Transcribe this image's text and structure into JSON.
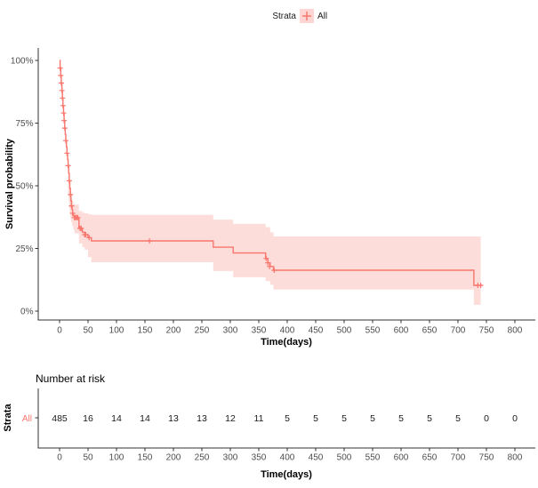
{
  "figure": {
    "background": "#ffffff",
    "accent_color": "#F8766D",
    "axis_text_color": "#4d4d4d"
  },
  "chart_data": [
    {
      "type": "line",
      "subtype": "kaplan-meier-step-curve-with-ci",
      "title": "",
      "xlabel": "Time(days)",
      "ylabel": "Survival probability",
      "xlim": [
        0,
        800
      ],
      "ylim": [
        0,
        100
      ],
      "grid": false,
      "legend": {
        "position": "top",
        "title": "Strata",
        "entries": [
          {
            "label": "All",
            "color": "#F8766D",
            "symbol": "+"
          }
        ]
      },
      "x_ticks": [
        0,
        50,
        100,
        150,
        200,
        250,
        300,
        350,
        400,
        450,
        500,
        550,
        600,
        650,
        700,
        750,
        800
      ],
      "y_ticks": [
        {
          "label": "0%",
          "value": 0
        },
        {
          "label": "25%",
          "value": 25
        },
        {
          "label": "50%",
          "value": 50
        },
        {
          "label": "75%",
          "value": 75
        },
        {
          "label": "100%",
          "value": 100
        }
      ],
      "series": [
        {
          "name": "All",
          "color": "#F8766D",
          "ci_fill_opacity": 0.25,
          "end_day": 742,
          "steps": [
            [
              0,
              100
            ],
            [
              1,
              97
            ],
            [
              2,
              94
            ],
            [
              3,
              91
            ],
            [
              4,
              88
            ],
            [
              5,
              85
            ],
            [
              6,
              82
            ],
            [
              7,
              79
            ],
            [
              8,
              76
            ],
            [
              9,
              73
            ],
            [
              10,
              70.5
            ],
            [
              11,
              68
            ],
            [
              12,
              65.5
            ],
            [
              13,
              63
            ],
            [
              14,
              60.5
            ],
            [
              15,
              58
            ],
            [
              16,
              55
            ],
            [
              17,
              52
            ],
            [
              18,
              49
            ],
            [
              19,
              46.5
            ],
            [
              20,
              44
            ],
            [
              21,
              42
            ],
            [
              22,
              40.5
            ],
            [
              23,
              39
            ],
            [
              24,
              38
            ],
            [
              26,
              37.3
            ],
            [
              34,
              33
            ],
            [
              40,
              31.5
            ],
            [
              44,
              30.5
            ],
            [
              50,
              29.3
            ],
            [
              56,
              28
            ],
            [
              270,
              25.5
            ],
            [
              305,
              23.2
            ],
            [
              362,
              21
            ],
            [
              366,
              19.3
            ],
            [
              370,
              17.8
            ],
            [
              376,
              16.3
            ],
            [
              728,
              10.3
            ]
          ],
          "censor_marks": [
            [
              1,
              97
            ],
            [
              2,
              94
            ],
            [
              3,
              91
            ],
            [
              4,
              88
            ],
            [
              5,
              85
            ],
            [
              6,
              82
            ],
            [
              7,
              79
            ],
            [
              8,
              76
            ],
            [
              9,
              73
            ],
            [
              11,
              68
            ],
            [
              13,
              63
            ],
            [
              15,
              58
            ],
            [
              17,
              52
            ],
            [
              19,
              46.5
            ],
            [
              21,
              42
            ],
            [
              23,
              39
            ],
            [
              26,
              37.3
            ],
            [
              28,
              37.3
            ],
            [
              30,
              37.3
            ],
            [
              32,
              37.3
            ],
            [
              36,
              33
            ],
            [
              38,
              33
            ],
            [
              44,
              30.5
            ],
            [
              46,
              30.5
            ],
            [
              52,
              29.3
            ],
            [
              158,
              28
            ],
            [
              363,
              21
            ],
            [
              366,
              19.3
            ],
            [
              369,
              17.8
            ],
            [
              377,
              16.3
            ],
            [
              735,
              10.3
            ],
            [
              740,
              10.3
            ]
          ],
          "ci_band_end_day": 740,
          "ci_upper": [
            [
              15,
              54
            ],
            [
              16,
              51
            ],
            [
              17,
              49
            ],
            [
              18,
              47.5
            ],
            [
              19,
              46
            ],
            [
              20,
              45
            ],
            [
              22,
              44
            ],
            [
              24,
              43
            ],
            [
              26,
              42.5
            ],
            [
              34,
              40
            ],
            [
              40,
              39.3
            ],
            [
              44,
              39
            ],
            [
              50,
              38.7
            ],
            [
              56,
              38.4
            ],
            [
              270,
              36.5
            ],
            [
              305,
              34.8
            ],
            [
              362,
              33.5
            ],
            [
              370,
              31.5
            ],
            [
              376,
              29.8
            ]
          ],
          "ci_lower": [
            [
              15,
              47
            ],
            [
              16,
              44
            ],
            [
              17,
              41
            ],
            [
              18,
              39
            ],
            [
              19,
              37
            ],
            [
              20,
              35.5
            ],
            [
              22,
              34
            ],
            [
              24,
              32.5
            ],
            [
              26,
              31
            ],
            [
              34,
              27
            ],
            [
              40,
              25.5
            ],
            [
              44,
              24.5
            ],
            [
              50,
              21.5
            ],
            [
              56,
              19.5
            ],
            [
              270,
              16
            ],
            [
              305,
              13.5
            ],
            [
              362,
              12
            ],
            [
              370,
              10.5
            ],
            [
              376,
              8.6
            ],
            [
              728,
              2.5
            ]
          ]
        }
      ]
    },
    {
      "type": "table",
      "title": "Number at risk",
      "ylabel": "Strata",
      "xlabel": "Time(days)",
      "x_ticks": [
        0,
        50,
        100,
        150,
        200,
        250,
        300,
        350,
        400,
        450,
        500,
        550,
        600,
        650,
        700,
        750,
        800
      ],
      "rows": [
        {
          "label": "All",
          "color": "#F8766D",
          "values": [
            485,
            16,
            14,
            14,
            13,
            13,
            12,
            11,
            5,
            5,
            5,
            5,
            5,
            5,
            5,
            0,
            0
          ]
        }
      ]
    }
  ]
}
